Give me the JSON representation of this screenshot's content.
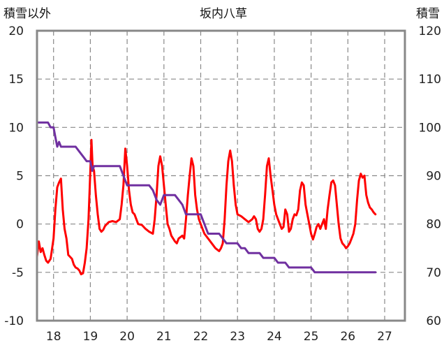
{
  "chart_data": {
    "type": "line",
    "title": "坂内八草",
    "left_axis_label": "積雪以外",
    "right_axis_label": "積雪",
    "x_tick_labels": [
      "18",
      "19",
      "20",
      "21",
      "22",
      "23",
      "24",
      "25",
      "26",
      "27"
    ],
    "x_range": [
      17.55,
      27.55
    ],
    "left_ylim": [
      -10,
      20
    ],
    "left_ticks": [
      -10,
      -5,
      0,
      5,
      10,
      15,
      20
    ],
    "left_tick_labels": [
      "-10",
      "-5",
      "0",
      "5",
      "10",
      "15",
      "20"
    ],
    "right_ylim": [
      60,
      120
    ],
    "right_ticks": [
      60,
      70,
      80,
      90,
      100,
      110,
      120
    ],
    "right_tick_labels": [
      "60",
      "70",
      "80",
      "90",
      "100",
      "110",
      "120"
    ],
    "grid": true,
    "colors": {
      "red_series": "#ff0000",
      "purple_series": "#7030a0",
      "grid": "#888888",
      "frame": "#888888"
    },
    "series": [
      {
        "axis": "left",
        "color": "#ff0000",
        "points": [
          [
            17.55,
            -3.4
          ],
          [
            17.6,
            -1.8
          ],
          [
            17.65,
            -2.9
          ],
          [
            17.7,
            -2.5
          ],
          [
            17.75,
            -3.2
          ],
          [
            17.8,
            -3.8
          ],
          [
            17.85,
            -4.0
          ],
          [
            17.92,
            -3.6
          ],
          [
            18.0,
            -1.5
          ],
          [
            18.05,
            1.5
          ],
          [
            18.1,
            3.8
          ],
          [
            18.15,
            4.3
          ],
          [
            18.2,
            4.7
          ],
          [
            18.25,
            1.5
          ],
          [
            18.3,
            -0.5
          ],
          [
            18.35,
            -1.5
          ],
          [
            18.4,
            -3.2
          ],
          [
            18.5,
            -3.6
          ],
          [
            18.55,
            -4.2
          ],
          [
            18.6,
            -4.5
          ],
          [
            18.65,
            -4.6
          ],
          [
            18.7,
            -4.8
          ],
          [
            18.75,
            -5.2
          ],
          [
            18.8,
            -5.1
          ],
          [
            18.85,
            -4.0
          ],
          [
            18.9,
            -2.5
          ],
          [
            18.95,
            0.5
          ],
          [
            19.0,
            5.5
          ],
          [
            19.03,
            8.7
          ],
          [
            19.06,
            6.0
          ],
          [
            19.1,
            5.5
          ],
          [
            19.15,
            3.0
          ],
          [
            19.2,
            1.0
          ],
          [
            19.25,
            -0.5
          ],
          [
            19.3,
            -0.8
          ],
          [
            19.35,
            -0.6
          ],
          [
            19.4,
            -0.2
          ],
          [
            19.5,
            0.2
          ],
          [
            19.6,
            0.3
          ],
          [
            19.7,
            0.2
          ],
          [
            19.8,
            0.5
          ],
          [
            19.85,
            2.0
          ],
          [
            19.9,
            4.0
          ],
          [
            19.95,
            7.8
          ],
          [
            20.0,
            6.0
          ],
          [
            20.05,
            3.5
          ],
          [
            20.1,
            2.0
          ],
          [
            20.15,
            1.2
          ],
          [
            20.2,
            1.0
          ],
          [
            20.25,
            0.5
          ],
          [
            20.3,
            0.0
          ],
          [
            20.4,
            -0.1
          ],
          [
            20.5,
            -0.5
          ],
          [
            20.6,
            -0.8
          ],
          [
            20.7,
            -1.0
          ],
          [
            20.75,
            0.5
          ],
          [
            20.8,
            3.0
          ],
          [
            20.85,
            6.0
          ],
          [
            20.9,
            7.0
          ],
          [
            20.95,
            6.0
          ],
          [
            21.0,
            4.0
          ],
          [
            21.05,
            2.0
          ],
          [
            21.1,
            0.0
          ],
          [
            21.15,
            -0.5
          ],
          [
            21.2,
            -1.2
          ],
          [
            21.25,
            -1.5
          ],
          [
            21.3,
            -1.8
          ],
          [
            21.35,
            -2.0
          ],
          [
            21.4,
            -1.5
          ],
          [
            21.5,
            -1.2
          ],
          [
            21.55,
            -1.5
          ],
          [
            21.6,
            0.5
          ],
          [
            21.65,
            3.0
          ],
          [
            21.7,
            5.0
          ],
          [
            21.75,
            6.8
          ],
          [
            21.8,
            6.0
          ],
          [
            21.85,
            3.0
          ],
          [
            21.9,
            1.5
          ],
          [
            21.95,
            0.5
          ],
          [
            22.0,
            0.0
          ],
          [
            22.05,
            -0.5
          ],
          [
            22.1,
            -1.0
          ],
          [
            22.2,
            -1.5
          ],
          [
            22.3,
            -2.0
          ],
          [
            22.4,
            -2.5
          ],
          [
            22.5,
            -2.8
          ],
          [
            22.55,
            -2.5
          ],
          [
            22.6,
            -2.0
          ],
          [
            22.65,
            0.5
          ],
          [
            22.7,
            4.0
          ],
          [
            22.75,
            6.5
          ],
          [
            22.8,
            7.6
          ],
          [
            22.85,
            6.5
          ],
          [
            22.9,
            4.0
          ],
          [
            22.95,
            2.0
          ],
          [
            23.0,
            1.0
          ],
          [
            23.1,
            0.8
          ],
          [
            23.2,
            0.5
          ],
          [
            23.3,
            0.2
          ],
          [
            23.4,
            0.5
          ],
          [
            23.45,
            0.8
          ],
          [
            23.5,
            0.5
          ],
          [
            23.55,
            -0.5
          ],
          [
            23.6,
            -0.8
          ],
          [
            23.65,
            -0.5
          ],
          [
            23.7,
            0.5
          ],
          [
            23.75,
            3.0
          ],
          [
            23.8,
            6.0
          ],
          [
            23.85,
            6.8
          ],
          [
            23.9,
            5.0
          ],
          [
            23.95,
            3.5
          ],
          [
            24.0,
            2.0
          ],
          [
            24.05,
            1.0
          ],
          [
            24.1,
            0.5
          ],
          [
            24.15,
            0.0
          ],
          [
            24.2,
            -0.5
          ],
          [
            24.25,
            -0.3
          ],
          [
            24.3,
            1.5
          ],
          [
            24.35,
            1.0
          ],
          [
            24.4,
            -0.8
          ],
          [
            24.45,
            -0.5
          ],
          [
            24.5,
            0.5
          ],
          [
            24.55,
            1.0
          ],
          [
            24.6,
            0.9
          ],
          [
            24.65,
            1.5
          ],
          [
            24.7,
            3.5
          ],
          [
            24.75,
            4.3
          ],
          [
            24.8,
            4.0
          ],
          [
            24.85,
            2.0
          ],
          [
            24.9,
            1.0
          ],
          [
            24.95,
            0.0
          ],
          [
            25.0,
            -1.0
          ],
          [
            25.05,
            -1.6
          ],
          [
            25.1,
            -1.0
          ],
          [
            25.15,
            -0.3
          ],
          [
            25.2,
            0.0
          ],
          [
            25.25,
            -0.5
          ],
          [
            25.3,
            0.0
          ],
          [
            25.35,
            0.5
          ],
          [
            25.4,
            -0.5
          ],
          [
            25.45,
            1.5
          ],
          [
            25.5,
            3.0
          ],
          [
            25.55,
            4.3
          ],
          [
            25.6,
            4.5
          ],
          [
            25.65,
            4.0
          ],
          [
            25.7,
            2.0
          ],
          [
            25.75,
            0.0
          ],
          [
            25.8,
            -1.5
          ],
          [
            25.85,
            -2.0
          ],
          [
            25.9,
            -2.2
          ],
          [
            25.95,
            -2.5
          ],
          [
            26.0,
            -2.3
          ],
          [
            26.05,
            -2.0
          ],
          [
            26.1,
            -1.5
          ],
          [
            26.15,
            -1.0
          ],
          [
            26.2,
            0.0
          ],
          [
            26.25,
            2.5
          ],
          [
            26.3,
            4.5
          ],
          [
            26.35,
            5.2
          ],
          [
            26.4,
            4.8
          ],
          [
            26.45,
            5.0
          ],
          [
            26.5,
            3.0
          ],
          [
            26.55,
            2.2
          ],
          [
            26.6,
            1.7
          ],
          [
            26.65,
            1.5
          ],
          [
            26.7,
            1.2
          ],
          [
            26.75,
            1.0
          ]
        ]
      },
      {
        "axis": "right",
        "color": "#7030a0",
        "points": [
          [
            17.55,
            101
          ],
          [
            17.85,
            101
          ],
          [
            17.92,
            100
          ],
          [
            18.0,
            100
          ],
          [
            18.05,
            98
          ],
          [
            18.1,
            96
          ],
          [
            18.15,
            97
          ],
          [
            18.2,
            96
          ],
          [
            18.25,
            96
          ],
          [
            18.3,
            96
          ],
          [
            18.5,
            96
          ],
          [
            18.6,
            96
          ],
          [
            18.7,
            95
          ],
          [
            18.8,
            94
          ],
          [
            18.9,
            93
          ],
          [
            19.0,
            93
          ],
          [
            19.05,
            91
          ],
          [
            19.1,
            92
          ],
          [
            19.15,
            92
          ],
          [
            19.2,
            92
          ],
          [
            19.3,
            92
          ],
          [
            19.4,
            92
          ],
          [
            19.5,
            92
          ],
          [
            19.6,
            92
          ],
          [
            19.7,
            92
          ],
          [
            19.8,
            92
          ],
          [
            19.9,
            90
          ],
          [
            20.0,
            88
          ],
          [
            20.1,
            88
          ],
          [
            20.2,
            88
          ],
          [
            20.3,
            88
          ],
          [
            20.4,
            88
          ],
          [
            20.5,
            88
          ],
          [
            20.6,
            88
          ],
          [
            20.7,
            87
          ],
          [
            20.8,
            85
          ],
          [
            20.9,
            84
          ],
          [
            21.0,
            86
          ],
          [
            21.1,
            86
          ],
          [
            21.2,
            86
          ],
          [
            21.3,
            86
          ],
          [
            21.4,
            85
          ],
          [
            21.5,
            84
          ],
          [
            21.6,
            82
          ],
          [
            21.7,
            82
          ],
          [
            21.8,
            82
          ],
          [
            21.9,
            82
          ],
          [
            22.0,
            82
          ],
          [
            22.1,
            80
          ],
          [
            22.2,
            78
          ],
          [
            22.3,
            78
          ],
          [
            22.4,
            78
          ],
          [
            22.5,
            78
          ],
          [
            22.6,
            77
          ],
          [
            22.7,
            76
          ],
          [
            22.8,
            76
          ],
          [
            22.9,
            76
          ],
          [
            23.0,
            76
          ],
          [
            23.1,
            75
          ],
          [
            23.2,
            75
          ],
          [
            23.3,
            74
          ],
          [
            23.4,
            74
          ],
          [
            23.5,
            74
          ],
          [
            23.6,
            74
          ],
          [
            23.7,
            73
          ],
          [
            23.8,
            73
          ],
          [
            23.9,
            73
          ],
          [
            24.0,
            73
          ],
          [
            24.1,
            72
          ],
          [
            24.2,
            72
          ],
          [
            24.3,
            72
          ],
          [
            24.4,
            71
          ],
          [
            24.5,
            71
          ],
          [
            24.6,
            71
          ],
          [
            24.7,
            71
          ],
          [
            24.8,
            71
          ],
          [
            24.9,
            71
          ],
          [
            25.0,
            71
          ],
          [
            25.1,
            70
          ],
          [
            25.2,
            70
          ],
          [
            25.3,
            70
          ],
          [
            25.4,
            70
          ],
          [
            25.5,
            70
          ],
          [
            25.6,
            70
          ],
          [
            25.7,
            70
          ],
          [
            25.8,
            70
          ],
          [
            25.9,
            70
          ],
          [
            26.0,
            70
          ],
          [
            26.1,
            70
          ],
          [
            26.2,
            70
          ],
          [
            26.3,
            70
          ],
          [
            26.4,
            70
          ],
          [
            26.5,
            70
          ],
          [
            26.6,
            70
          ],
          [
            26.7,
            70
          ],
          [
            26.75,
            70
          ]
        ]
      }
    ]
  }
}
